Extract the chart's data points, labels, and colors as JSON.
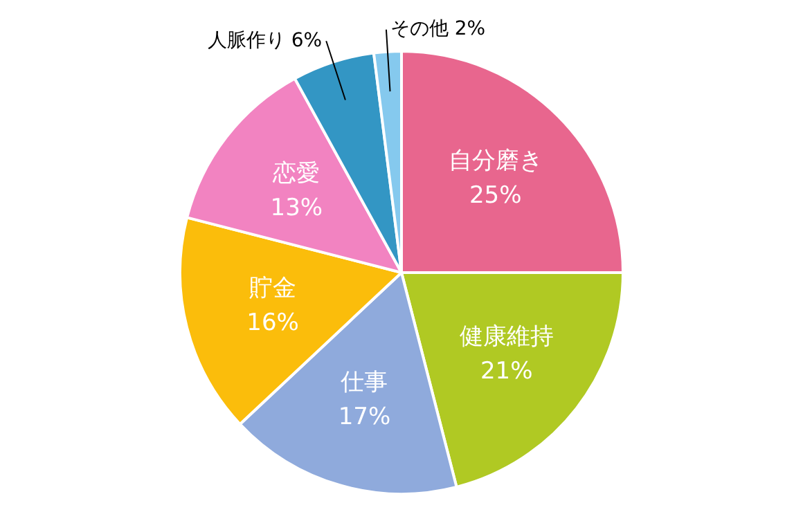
{
  "chart_data": {
    "type": "pie",
    "categories": [
      "自分磨き",
      "健康維持",
      "仕事",
      "貯金",
      "恋愛",
      "人脈作り",
      "その他"
    ],
    "values": [
      25,
      21,
      17,
      16,
      13,
      6,
      2
    ],
    "value_labels": [
      "25%",
      "21%",
      "17%",
      "16%",
      "13%",
      "6%",
      "2%"
    ],
    "colors": [
      "#e8668e",
      "#b0c923",
      "#8faadc",
      "#fbbd0b",
      "#f283c1",
      "#3396c4",
      "#85c9ee"
    ],
    "legend": false
  }
}
